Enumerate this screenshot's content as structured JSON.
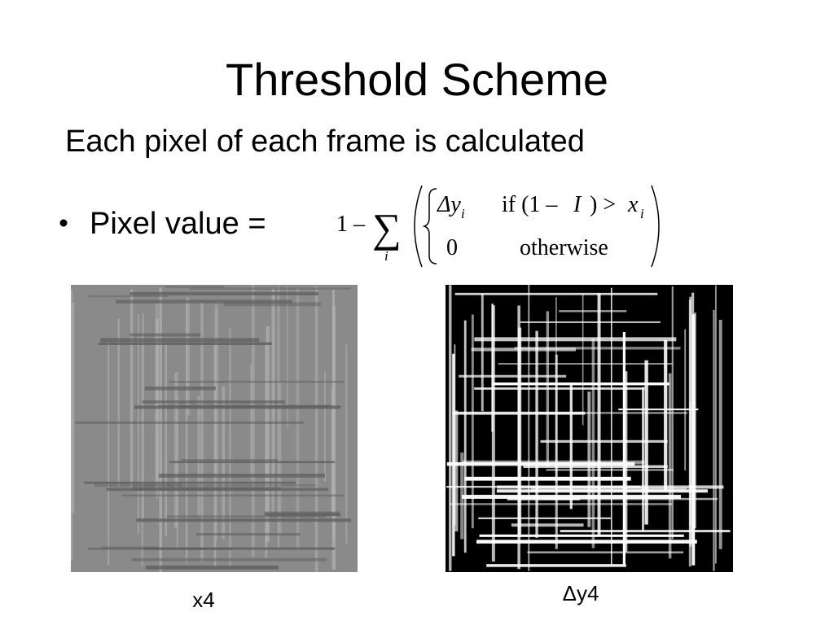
{
  "slide": {
    "title": "Threshold Scheme",
    "subtitle": "Each pixel of each frame is calculated",
    "bullet": "Pixel value =",
    "formula": {
      "one_minus": "1 –",
      "sum": "∑",
      "sum_index": "i",
      "delta_y": "Δy",
      "delta_y_index": "i",
      "condition_start": "if (1 –",
      "condition_I": "I",
      "condition_mid": ") >",
      "condition_x": "x",
      "condition_x_index": "i",
      "zero": "0",
      "otherwise": "otherwise"
    },
    "images": [
      {
        "caption": "x4"
      },
      {
        "caption": "Δy4"
      }
    ]
  }
}
